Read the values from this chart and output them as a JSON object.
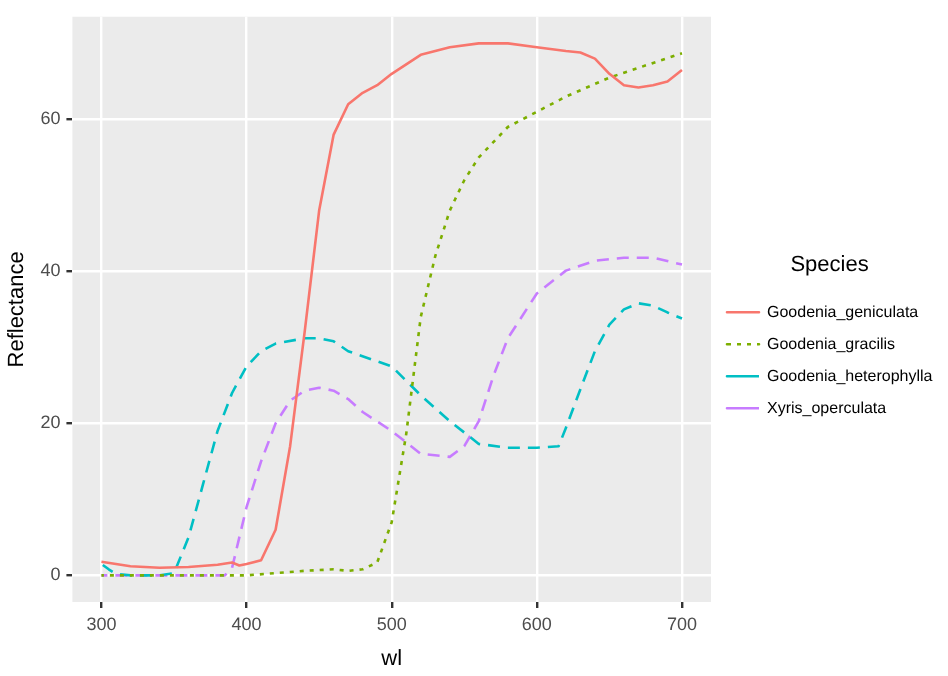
{
  "chart_data": {
    "type": "line",
    "xlabel": "wl",
    "ylabel": "Reflectance",
    "legend_title": "Species",
    "legend": "right",
    "grid": true,
    "marker": "none",
    "xlim": [
      280,
      720
    ],
    "xticks": [
      300,
      400,
      500,
      600,
      700
    ],
    "ylim": [
      -3.5,
      73.5
    ],
    "yticks": [
      0,
      20,
      40,
      60
    ],
    "series": [
      {
        "name": "Goodenia_geniculata",
        "color": "#f8766d",
        "line_style": "solid",
        "x": [
          300,
          320,
          340,
          360,
          380,
          390,
          395,
          400,
          410,
          420,
          430,
          440,
          450,
          460,
          470,
          480,
          490,
          500,
          520,
          540,
          560,
          580,
          600,
          620,
          630,
          640,
          650,
          660,
          670,
          680,
          690,
          700
        ],
        "values": [
          1.8,
          1.2,
          1,
          1.1,
          1.4,
          1.7,
          1.3,
          1.5,
          2,
          6,
          17,
          32,
          48,
          58,
          62,
          63.5,
          64.5,
          66,
          68.5,
          69.5,
          70,
          70,
          69.5,
          69,
          68.8,
          68,
          66,
          64.5,
          64.2,
          64.5,
          65,
          66.5
        ]
      },
      {
        "name": "Goodenia_gracilis",
        "color": "#7cae00",
        "line_style": "dotted",
        "x": [
          300,
          320,
          340,
          360,
          380,
          400,
          420,
          440,
          460,
          470,
          480,
          490,
          500,
          510,
          520,
          530,
          540,
          550,
          560,
          580,
          600,
          620,
          650,
          700
        ],
        "values": [
          0,
          0,
          0,
          0,
          0,
          0,
          0.3,
          0.6,
          0.8,
          0.6,
          0.8,
          1.7,
          7,
          18.6,
          34,
          42,
          48,
          52,
          55,
          59,
          61,
          63,
          65.5,
          68.7
        ]
      },
      {
        "name": "Goodenia_heterophylla",
        "color": "#00bfc4",
        "line_style": "dashed",
        "x": [
          300,
          305,
          310,
          320,
          340,
          350,
          360,
          370,
          380,
          390,
          400,
          410,
          420,
          440,
          450,
          460,
          470,
          500,
          520,
          540,
          560,
          580,
          600,
          615,
          620,
          630,
          640,
          650,
          660,
          670,
          680,
          690,
          700
        ],
        "values": [
          1.5,
          0.8,
          0.2,
          0,
          0,
          0.3,
          5,
          12,
          19,
          24,
          27.5,
          29.5,
          30.5,
          31.2,
          31.2,
          30.8,
          29.5,
          27.5,
          23.7,
          20.3,
          17.3,
          16.8,
          16.8,
          17,
          19.4,
          24.5,
          29.5,
          33,
          35,
          35.8,
          35.5,
          34.6,
          33.8
        ]
      },
      {
        "name": "Xyris_operculata",
        "color": "#c77cff",
        "line_style": "dashed",
        "x": [
          300,
          340,
          385,
          390,
          395,
          400,
          410,
          420,
          430,
          440,
          450,
          460,
          470,
          480,
          500,
          520,
          540,
          550,
          560,
          570,
          580,
          600,
          620,
          640,
          660,
          680,
          700
        ],
        "values": [
          0,
          0,
          0,
          1,
          5,
          9,
          15,
          20,
          23,
          24.3,
          24.7,
          24.3,
          23.2,
          21.5,
          19,
          16,
          15.6,
          17,
          20.3,
          26.2,
          31.2,
          37.1,
          40.1,
          41.4,
          41.8,
          41.8,
          40.9
        ]
      }
    ]
  }
}
